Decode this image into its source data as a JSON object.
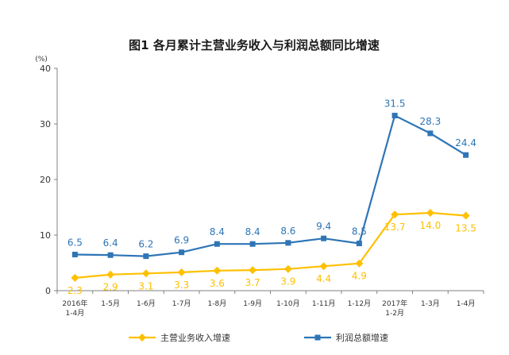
{
  "chart_data": {
    "type": "line",
    "title": "图1 各月累计主营业务收入与利润总额同比增速",
    "y_unit": "(%)",
    "xlabel": "",
    "ylabel": "",
    "ylim": [
      0,
      40
    ],
    "yticks": [
      0,
      10,
      20,
      30,
      40
    ],
    "grid": false,
    "legend_position": "bottom",
    "categories": [
      [
        "2016年",
        "1-4月"
      ],
      [
        "1-5月"
      ],
      [
        "1-6月"
      ],
      [
        "1-7月"
      ],
      [
        "1-8月"
      ],
      [
        "1-9月"
      ],
      [
        "1-10月"
      ],
      [
        "1-11月"
      ],
      [
        "1-12月"
      ],
      [
        "2017年",
        "1-2月"
      ],
      [
        "1-3月"
      ],
      [
        "1-4月"
      ]
    ],
    "series": [
      {
        "name": "主营业务收入增速",
        "color": "#FFC000",
        "marker": "diamond",
        "values": [
          2.3,
          2.9,
          3.1,
          3.3,
          3.6,
          3.7,
          3.9,
          4.4,
          4.9,
          13.7,
          14.0,
          13.5
        ]
      },
      {
        "name": "利润总额增速",
        "color": "#2E75B6",
        "marker": "square",
        "values": [
          6.5,
          6.4,
          6.2,
          6.9,
          8.4,
          8.4,
          8.6,
          9.4,
          8.5,
          31.5,
          28.3,
          24.4
        ]
      }
    ]
  }
}
